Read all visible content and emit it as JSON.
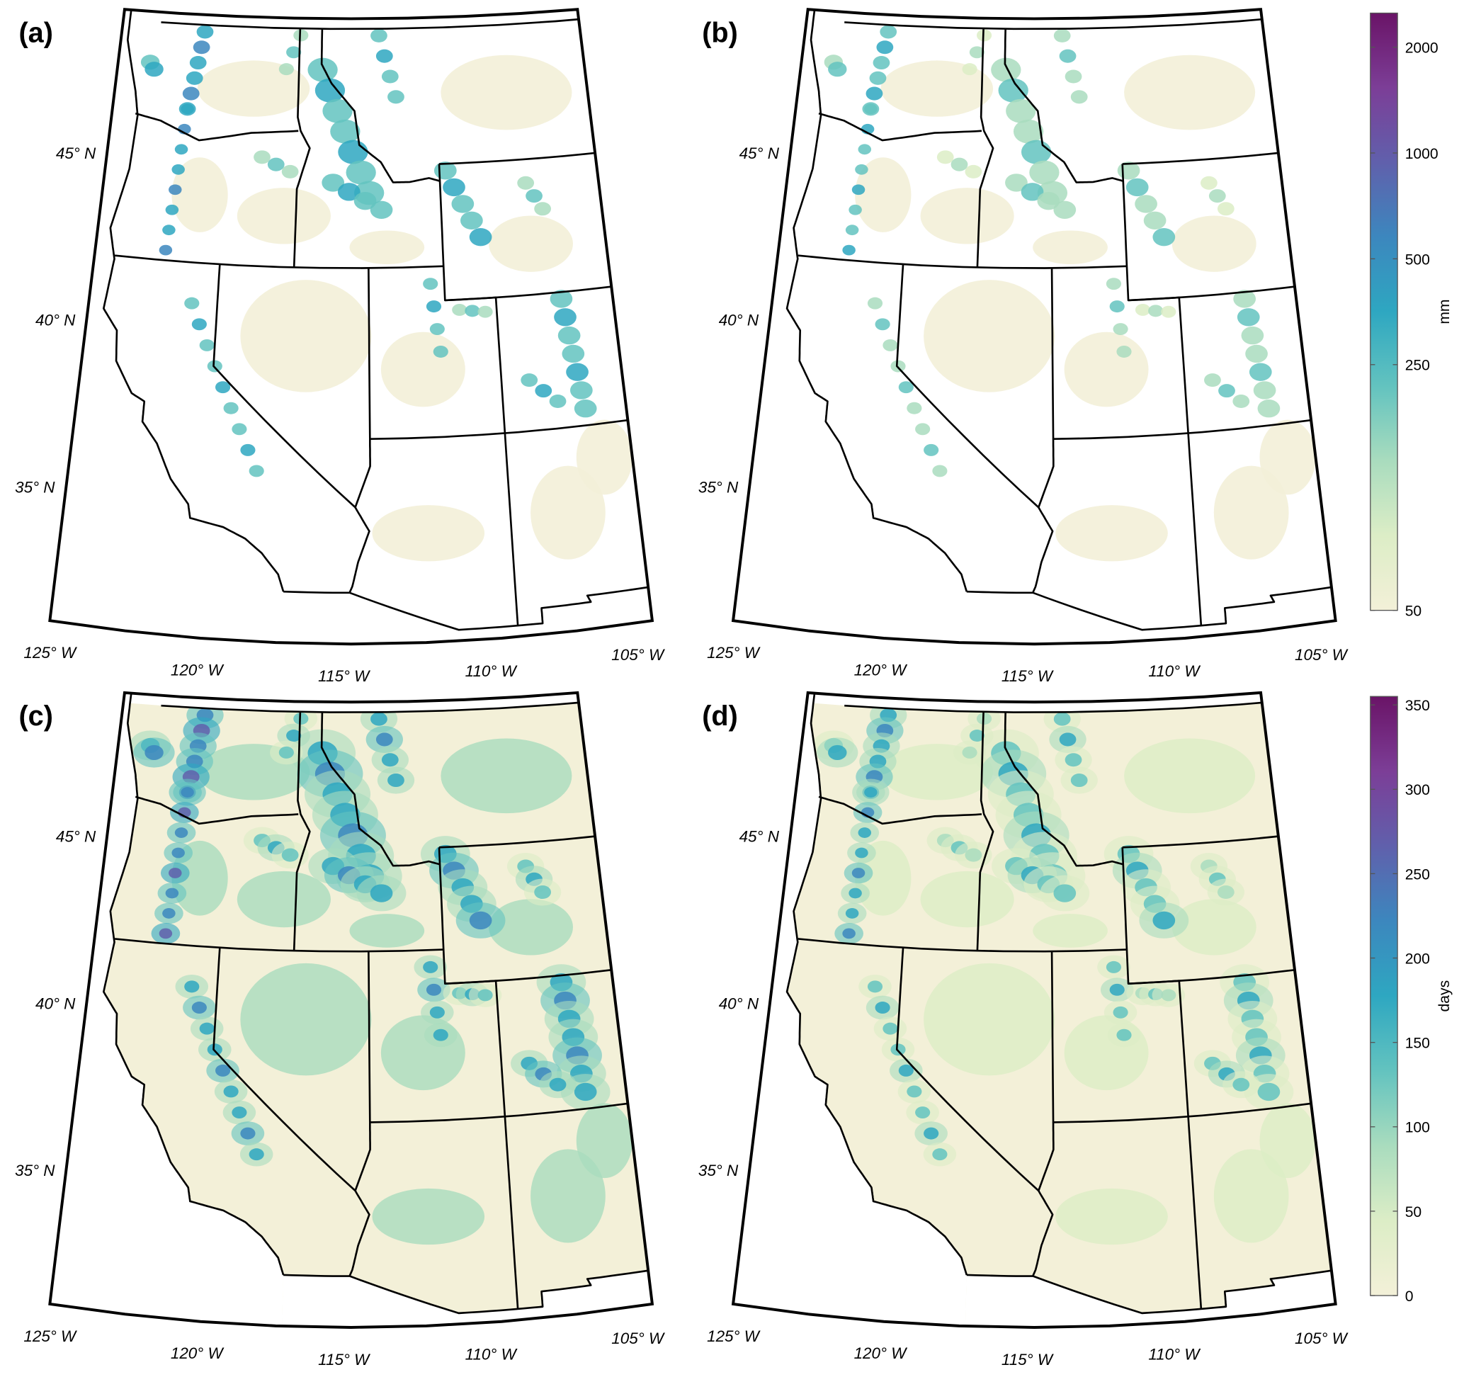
{
  "panels": [
    {
      "label": "(a)"
    },
    {
      "label": "(b)"
    },
    {
      "label": "(c)"
    },
    {
      "label": "(d)"
    }
  ],
  "lat_ticks": [
    {
      "value": 45,
      "label": "45° N"
    },
    {
      "value": 40,
      "label": "40° N"
    },
    {
      "value": 35,
      "label": "35° N"
    }
  ],
  "lon_ticks": [
    {
      "value": -125,
      "label": "125° W"
    },
    {
      "value": -120,
      "label": "120° W"
    },
    {
      "value": -115,
      "label": "115° W"
    },
    {
      "value": -110,
      "label": "110° W"
    },
    {
      "value": -105,
      "label": "105° W"
    }
  ],
  "colorbars": [
    {
      "label": "mm",
      "scale": "log",
      "lim": [
        50,
        2500
      ],
      "ticks": [
        50,
        250,
        500,
        1000,
        2000
      ]
    },
    {
      "label": "days",
      "scale": "linear",
      "lim": [
        0,
        355
      ],
      "ticks": [
        0,
        50,
        100,
        150,
        200,
        250,
        300,
        350
      ]
    }
  ],
  "colormap": [
    "#f3f0d8",
    "#dcedc6",
    "#a9dcbe",
    "#63c3bf",
    "#2ea7c1",
    "#3c87be",
    "#6060ac",
    "#7c3e97",
    "#6a1467"
  ]
}
